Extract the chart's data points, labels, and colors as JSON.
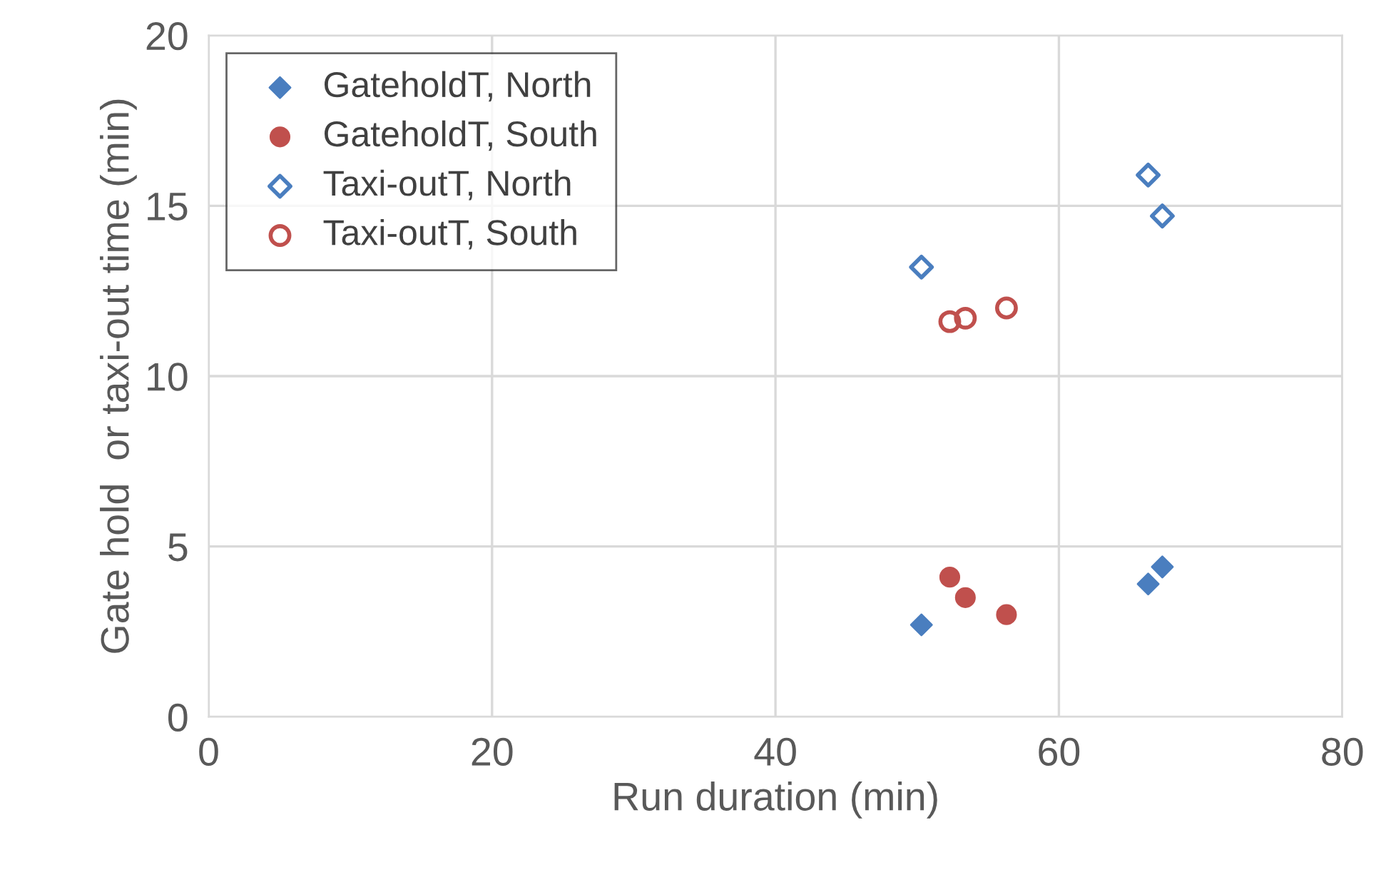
{
  "chart_data": {
    "type": "scatter",
    "xlabel": "Run duration (min)",
    "ylabel": "Gate hold  or taxi-out time (min)",
    "xlim": [
      0,
      80
    ],
    "xticks": [
      0,
      20,
      40,
      60,
      80
    ],
    "ylim": [
      0,
      20
    ],
    "yticks": [
      0,
      5,
      10,
      15,
      20
    ],
    "grid": true,
    "legend": "top left",
    "series": [
      {
        "name": "GateholdT, North",
        "color": "#4a7ebf",
        "marker": "diamond",
        "x": [
          50.3,
          66.3,
          67.3
        ],
        "values": [
          2.7,
          3.9,
          4.4
        ]
      },
      {
        "name": "GateholdT, South",
        "color": "#c0504d",
        "marker": "circle",
        "x": [
          52.3,
          53.4,
          56.3
        ],
        "values": [
          4.1,
          3.5,
          3.0
        ]
      },
      {
        "name": "Taxi-outT, North",
        "color": "#4a7ebf",
        "marker": "diamond",
        "x": [
          50.3,
          66.3,
          67.3
        ],
        "values": [
          13.2,
          15.9,
          14.7
        ]
      },
      {
        "name": "Taxi-outT, South",
        "color": "#c0504d",
        "marker": "circle",
        "x": [
          52.3,
          53.4,
          56.3
        ],
        "values": [
          11.6,
          11.7,
          12.0
        ]
      }
    ]
  }
}
